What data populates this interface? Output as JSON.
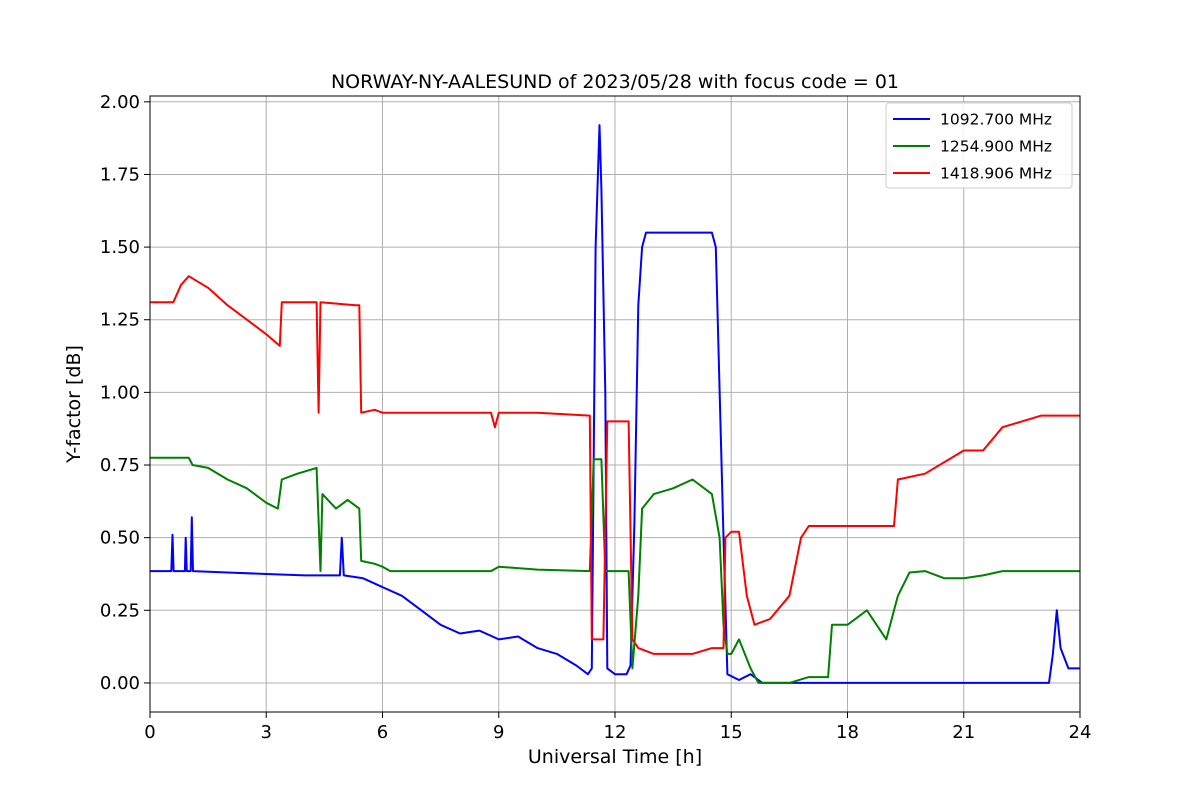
{
  "chart_data": {
    "type": "line",
    "title": "NORWAY-NY-AALESUND of 2023/05/28 with focus code = 01",
    "xlabel": "Universal Time [h]",
    "ylabel": "Y-factor [dB]",
    "xlim": [
      0,
      24
    ],
    "ylim": [
      -0.1,
      2.02
    ],
    "xticks": [
      0,
      3,
      6,
      9,
      12,
      15,
      18,
      21,
      24
    ],
    "xtick_labels": [
      "0",
      "3",
      "6",
      "9",
      "12",
      "15",
      "18",
      "21",
      "24"
    ],
    "yticks": [
      0,
      0.25,
      0.5,
      0.75,
      1.0,
      1.25,
      1.5,
      1.75,
      2.0
    ],
    "ytick_labels": [
      "0.00",
      "0.25",
      "0.50",
      "0.75",
      "1.00",
      "1.25",
      "1.50",
      "1.75",
      "2.00"
    ],
    "grid": true,
    "legend_position": "top-right",
    "series": [
      {
        "name": "1092.700 MHz",
        "color": "#0000ff",
        "points": [
          [
            0,
            0.385
          ],
          [
            0.55,
            0.385
          ],
          [
            0.58,
            0.51
          ],
          [
            0.61,
            0.385
          ],
          [
            0.9,
            0.385
          ],
          [
            0.92,
            0.5
          ],
          [
            0.95,
            0.385
          ],
          [
            1.05,
            0.385
          ],
          [
            1.08,
            0.57
          ],
          [
            1.11,
            0.385
          ],
          [
            2,
            0.38
          ],
          [
            3,
            0.375
          ],
          [
            4,
            0.37
          ],
          [
            4.9,
            0.37
          ],
          [
            4.95,
            0.5
          ],
          [
            5,
            0.37
          ],
          [
            5.5,
            0.36
          ],
          [
            6,
            0.33
          ],
          [
            6.5,
            0.3
          ],
          [
            7,
            0.25
          ],
          [
            7.5,
            0.2
          ],
          [
            8,
            0.17
          ],
          [
            8.5,
            0.18
          ],
          [
            9,
            0.15
          ],
          [
            9.5,
            0.16
          ],
          [
            10,
            0.12
          ],
          [
            10.5,
            0.1
          ],
          [
            11,
            0.06
          ],
          [
            11.3,
            0.03
          ],
          [
            11.4,
            0.05
          ],
          [
            11.5,
            1.5
          ],
          [
            11.6,
            1.92
          ],
          [
            11.65,
            1.7
          ],
          [
            11.75,
            1.0
          ],
          [
            11.8,
            0.05
          ],
          [
            12,
            0.03
          ],
          [
            12.3,
            0.03
          ],
          [
            12.4,
            0.06
          ],
          [
            12.5,
            0.55
          ],
          [
            12.6,
            1.3
          ],
          [
            12.7,
            1.5
          ],
          [
            12.8,
            1.55
          ],
          [
            13,
            1.55
          ],
          [
            13.5,
            1.55
          ],
          [
            14,
            1.55
          ],
          [
            14.5,
            1.55
          ],
          [
            14.6,
            1.5
          ],
          [
            14.8,
            0.5
          ],
          [
            14.9,
            0.03
          ],
          [
            15.2,
            0.01
          ],
          [
            15.5,
            0.03
          ],
          [
            15.8,
            0
          ],
          [
            16,
            0
          ],
          [
            18,
            0
          ],
          [
            19,
            0
          ],
          [
            19.5,
            0
          ],
          [
            20,
            0
          ],
          [
            21,
            0
          ],
          [
            22,
            0
          ],
          [
            23,
            0
          ],
          [
            23.2,
            0
          ],
          [
            23.3,
            0.1
          ],
          [
            23.4,
            0.25
          ],
          [
            23.5,
            0.12
          ],
          [
            23.7,
            0.05
          ],
          [
            24,
            0.05
          ]
        ]
      },
      {
        "name": "1254.900 MHz",
        "color": "#008000",
        "points": [
          [
            0,
            0.775
          ],
          [
            1,
            0.775
          ],
          [
            1.1,
            0.75
          ],
          [
            1.5,
            0.74
          ],
          [
            2,
            0.7
          ],
          [
            2.5,
            0.67
          ],
          [
            3,
            0.62
          ],
          [
            3.3,
            0.6
          ],
          [
            3.4,
            0.7
          ],
          [
            3.8,
            0.72
          ],
          [
            4.3,
            0.74
          ],
          [
            4.4,
            0.385
          ],
          [
            4.45,
            0.65
          ],
          [
            4.8,
            0.6
          ],
          [
            5.1,
            0.63
          ],
          [
            5.4,
            0.6
          ],
          [
            5.45,
            0.42
          ],
          [
            5.8,
            0.41
          ],
          [
            6,
            0.4
          ],
          [
            6.2,
            0.385
          ],
          [
            8.8,
            0.385
          ],
          [
            9,
            0.4
          ],
          [
            10,
            0.39
          ],
          [
            11.35,
            0.385
          ],
          [
            11.45,
            0.77
          ],
          [
            11.65,
            0.77
          ],
          [
            11.75,
            0.385
          ],
          [
            12.35,
            0.385
          ],
          [
            12.45,
            0.05
          ],
          [
            12.6,
            0.3
          ],
          [
            12.7,
            0.6
          ],
          [
            13,
            0.65
          ],
          [
            13.5,
            0.67
          ],
          [
            14,
            0.7
          ],
          [
            14.5,
            0.65
          ],
          [
            14.7,
            0.5
          ],
          [
            14.8,
            0.2
          ],
          [
            14.9,
            0.1
          ],
          [
            15,
            0.1
          ],
          [
            15.2,
            0.15
          ],
          [
            15.5,
            0.05
          ],
          [
            15.7,
            0
          ],
          [
            16.5,
            0
          ],
          [
            17,
            0.02
          ],
          [
            17.5,
            0.02
          ],
          [
            17.6,
            0.2
          ],
          [
            18,
            0.2
          ],
          [
            18.5,
            0.25
          ],
          [
            19,
            0.15
          ],
          [
            19.3,
            0.3
          ],
          [
            19.6,
            0.38
          ],
          [
            20,
            0.385
          ],
          [
            20.5,
            0.36
          ],
          [
            21,
            0.36
          ],
          [
            21.5,
            0.37
          ],
          [
            22,
            0.385
          ],
          [
            23,
            0.385
          ],
          [
            24,
            0.385
          ]
        ]
      },
      {
        "name": "1418.906 MHz",
        "color": "#ff0000",
        "points": [
          [
            0,
            1.31
          ],
          [
            0.6,
            1.31
          ],
          [
            0.8,
            1.37
          ],
          [
            1,
            1.4
          ],
          [
            1.5,
            1.36
          ],
          [
            2,
            1.3
          ],
          [
            2.5,
            1.25
          ],
          [
            3,
            1.2
          ],
          [
            3.35,
            1.16
          ],
          [
            3.4,
            1.31
          ],
          [
            4.3,
            1.31
          ],
          [
            4.35,
            0.93
          ],
          [
            4.4,
            1.31
          ],
          [
            5.3,
            1.3
          ],
          [
            5.4,
            1.3
          ],
          [
            5.45,
            0.93
          ],
          [
            5.8,
            0.94
          ],
          [
            6,
            0.93
          ],
          [
            8.8,
            0.93
          ],
          [
            8.9,
            0.88
          ],
          [
            9,
            0.93
          ],
          [
            10,
            0.93
          ],
          [
            11.35,
            0.92
          ],
          [
            11.4,
            0.15
          ],
          [
            11.7,
            0.15
          ],
          [
            11.8,
            0.9
          ],
          [
            12.35,
            0.9
          ],
          [
            12.45,
            0.15
          ],
          [
            12.6,
            0.12
          ],
          [
            13,
            0.1
          ],
          [
            13.5,
            0.1
          ],
          [
            14,
            0.1
          ],
          [
            14.5,
            0.12
          ],
          [
            14.8,
            0.12
          ],
          [
            14.85,
            0.5
          ],
          [
            15,
            0.52
          ],
          [
            15.2,
            0.52
          ],
          [
            15.4,
            0.3
          ],
          [
            15.6,
            0.2
          ],
          [
            16,
            0.22
          ],
          [
            16.5,
            0.3
          ],
          [
            16.8,
            0.5
          ],
          [
            17,
            0.54
          ],
          [
            19.2,
            0.54
          ],
          [
            19.3,
            0.7
          ],
          [
            20,
            0.72
          ],
          [
            21,
            0.8
          ],
          [
            21.5,
            0.8
          ],
          [
            22,
            0.88
          ],
          [
            22.5,
            0.9
          ],
          [
            23,
            0.92
          ],
          [
            24,
            0.92
          ]
        ]
      }
    ]
  }
}
